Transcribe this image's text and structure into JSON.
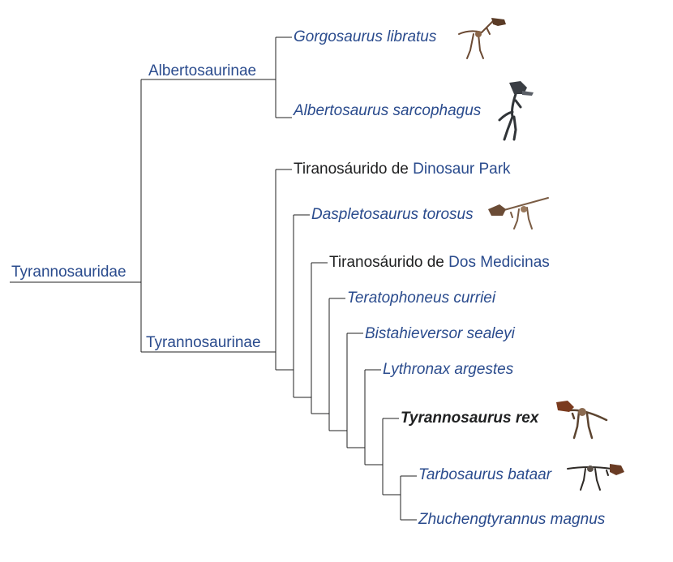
{
  "root": {
    "label": "Tyrannosauridae"
  },
  "subfamilies": {
    "albertosaurinae": "Albertosaurinae",
    "tyrannosaurinae": "Tyrannosaurinae"
  },
  "taxa": {
    "gorgosaurus": "Gorgosaurus libratus",
    "albertosaurus": "Albertosaurus sarcophagus",
    "dinosaur_park_prefix": "Tiranosáurido de ",
    "dinosaur_park_link": "Dinosaur Park",
    "daspletosaurus": "Daspletosaurus torosus",
    "two_medicine_prefix": "Tiranosáurido de ",
    "two_medicine_link": "Dos Medicinas",
    "teratophoneus": "Teratophoneus curriei",
    "bistahieversor": "Bistahieversor sealeyi",
    "lythronax": "Lythronax argestes",
    "tyrannosaurus": "Tyrannosaurus rex",
    "tarbosaurus": "Tarbosaurus bataar",
    "zhuchengtyrannus": "Zhuchengtyrannus magnus"
  },
  "colors": {
    "link": "#2a4b8d",
    "text": "#202122",
    "line": "#202122"
  },
  "icons": [
    "gorgosaurus-skeleton-icon",
    "albertosaurus-skeleton-icon",
    "daspletosaurus-skeleton-icon",
    "tyrannosaurus-skeleton-icon",
    "tarbosaurus-skeleton-icon"
  ]
}
